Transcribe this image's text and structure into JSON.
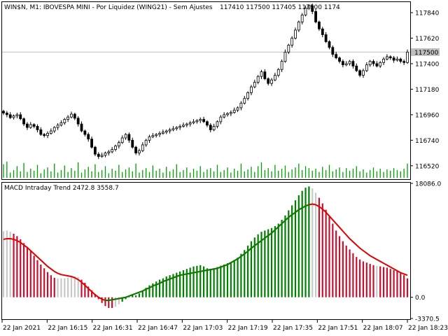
{
  "window": {
    "symbol_header": "WIN$N, M1:  IBOVESPA MINI - Por Liquidez (WING21) - Sem Ajustes",
    "ohlc_text": "117410 117500 117405 117500  1174"
  },
  "current_price_label": "117500",
  "chart_data": [
    {
      "type": "candlestick",
      "title": "WIN$N, M1:  IBOVESPA MINI - Por Liquidez (WING21) - Sem Ajustes",
      "ylim": [
        116410,
        117925
      ],
      "y_ticks": [
        "117840",
        "117620",
        "117400",
        "117180",
        "116960",
        "116740",
        "116520"
      ],
      "y_tick_values": [
        117840,
        117620,
        117400,
        117180,
        116960,
        116740,
        116520
      ],
      "current_price": 117500,
      "close": [
        116975,
        116960,
        116935,
        116950,
        116960,
        116925,
        116880,
        116850,
        116875,
        116860,
        116830,
        116790,
        116780,
        116800,
        116820,
        116850,
        116870,
        116890,
        116920,
        116940,
        116965,
        116930,
        116880,
        116820,
        116790,
        116750,
        116680,
        116620,
        116600,
        116610,
        116630,
        116640,
        116660,
        116690,
        116720,
        116760,
        116790,
        116740,
        116680,
        116630,
        116650,
        116700,
        116740,
        116770,
        116780,
        116790,
        116800,
        116810,
        116820,
        116830,
        116840,
        116850,
        116860,
        116870,
        116880,
        116890,
        116900,
        116910,
        116920,
        116900,
        116870,
        116830,
        116860,
        116900,
        116940,
        116960,
        116970,
        116980,
        117000,
        117020,
        117060,
        117100,
        117150,
        117200,
        117240,
        117290,
        117330,
        117270,
        117230,
        117260,
        117300,
        117350,
        117420,
        117500,
        117560,
        117620,
        117690,
        117760,
        117820,
        117880,
        117900,
        117850,
        117760,
        117700,
        117650,
        117590,
        117540,
        117480,
        117450,
        117420,
        117390,
        117400,
        117420,
        117380,
        117340,
        117300,
        117340,
        117390,
        117420,
        117400,
        117380,
        117410,
        117440,
        117460,
        117450,
        117430,
        117440,
        117420,
        117410,
        117500
      ],
      "volume": [
        21,
        25,
        8,
        12,
        18,
        10,
        23,
        9,
        14,
        11,
        20,
        7,
        13,
        16,
        10,
        22,
        8,
        12,
        19,
        9,
        15,
        11,
        24,
        8,
        13,
        17,
        10,
        21,
        9,
        12,
        18,
        7,
        14,
        11,
        20,
        9,
        13,
        16,
        10,
        22,
        8,
        12,
        15,
        9,
        19,
        11,
        14,
        8,
        17,
        10,
        13,
        21,
        9,
        12,
        16,
        8,
        14,
        11,
        18,
        9,
        13,
        15,
        10,
        20,
        9,
        12,
        16,
        8,
        14,
        11,
        22,
        10,
        13,
        17,
        9,
        18,
        24,
        12,
        15,
        10,
        20,
        11,
        14,
        19,
        9,
        13,
        16,
        22,
        12,
        18,
        15,
        11,
        14,
        9,
        17,
        12,
        20,
        10,
        13,
        16,
        9,
        15,
        11,
        14,
        18,
        10,
        13,
        8,
        12,
        16,
        10,
        14,
        9,
        13,
        11,
        15,
        12,
        10,
        14,
        22
      ]
    },
    {
      "type": "bar",
      "title": "MACD Intraday Trend  2472.8 3558.7",
      "indicator_name": "MACD Intraday Trend",
      "indicator_values": "2472.8 3558.7",
      "ylim": [
        -3370.5,
        18086.0
      ],
      "y_ticks": [
        "18086.0",
        "0.0",
        "-3370.5"
      ],
      "y_tick_values": [
        18086.0,
        0.0,
        -3370.5
      ],
      "x_ticks": [
        "22 Jan 2021",
        "22 Jan 16:15",
        "22 Jan 16:31",
        "22 Jan 16:47",
        "22 Jan 17:03",
        "22 Jan 17:19",
        "22 Jan 17:35",
        "22 Jan 17:51",
        "22 Jan 18:07",
        "22 Jan 18:23"
      ],
      "colors": {
        "up": "#008000",
        "down": "#c8102e",
        "neutral": "#c8c8c8",
        "signal": "#e00000"
      },
      "histogram": [
        10500,
        10600,
        10400,
        10100,
        9700,
        9200,
        8600,
        8000,
        7300,
        6600,
        5900,
        5200,
        4600,
        4000,
        3500,
        3100,
        3000,
        3000,
        3000,
        3100,
        3200,
        3300,
        3200,
        2800,
        2300,
        1700,
        1100,
        500,
        -300,
        -900,
        -1400,
        -1700,
        -1700,
        -1500,
        -1100,
        -700,
        -300,
        100,
        300,
        300,
        600,
        1000,
        1500,
        1900,
        2200,
        2500,
        2800,
        3000,
        3300,
        3500,
        3700,
        3900,
        4100,
        4300,
        4500,
        4700,
        4900,
        5000,
        5100,
        4900,
        4600,
        4500,
        4600,
        4800,
        5000,
        5200,
        5400,
        5600,
        5900,
        6300,
        6900,
        7500,
        8200,
        8900,
        9500,
        10000,
        10400,
        10600,
        10800,
        11000,
        11300,
        11700,
        12300,
        13000,
        13800,
        14600,
        15400,
        16200,
        16900,
        17400,
        17600,
        17300,
        16600,
        15800,
        14900,
        13900,
        12800,
        11700,
        10600,
        9700,
        8900,
        8200,
        7600,
        7000,
        6400,
        6000,
        5700,
        5500,
        5300,
        5100,
        5000,
        4900,
        4800,
        4700,
        4500,
        4300,
        4100,
        3800,
        3500,
        3000
      ],
      "bar_colors": [
        "neutral",
        "neutral",
        "neutral",
        "down",
        "down",
        "down",
        "down",
        "down",
        "down",
        "down",
        "down",
        "down",
        "down",
        "down",
        "down",
        "down",
        "neutral",
        "neutral",
        "neutral",
        "neutral",
        "neutral",
        "neutral",
        "neutral",
        "down",
        "down",
        "down",
        "down",
        "down",
        "down",
        "down",
        "down",
        "down",
        "down",
        "neutral",
        "neutral",
        "up",
        "up",
        "up",
        "up",
        "up",
        "up",
        "up",
        "up",
        "up",
        "up",
        "up",
        "up",
        "up",
        "up",
        "up",
        "up",
        "up",
        "up",
        "up",
        "up",
        "up",
        "up",
        "up",
        "up",
        "up",
        "up",
        "up",
        "up",
        "up",
        "up",
        "up",
        "up",
        "up",
        "up",
        "up",
        "up",
        "up",
        "up",
        "up",
        "up",
        "up",
        "up",
        "up",
        "up",
        "up",
        "up",
        "up",
        "up",
        "up",
        "up",
        "up",
        "up",
        "up",
        "up",
        "up",
        "up",
        "neutral",
        "neutral",
        "down",
        "down",
        "down",
        "down",
        "down",
        "down",
        "down",
        "down",
        "down",
        "down",
        "down",
        "down",
        "down",
        "down",
        "down",
        "down",
        "down",
        "neutral",
        "down",
        "down",
        "down",
        "down",
        "down",
        "down",
        "down",
        "down",
        "down"
      ],
      "signal_line": [
        9200,
        9300,
        9300,
        9200,
        9000,
        8700,
        8300,
        7900,
        7400,
        6900,
        6400,
        5900,
        5400,
        4900,
        4500,
        4100,
        3800,
        3600,
        3500,
        3400,
        3300,
        3100,
        2800,
        2400,
        1900,
        1400,
        900,
        400,
        0,
        -300,
        -500,
        -500,
        -400,
        -300,
        -200,
        -100,
        0,
        200,
        400,
        600,
        800,
        1000,
        1300,
        1500,
        1800,
        2000,
        2200,
        2500,
        2700,
        2900,
        3100,
        3300,
        3500,
        3600,
        3700,
        3800,
        3900,
        4000,
        4100,
        4200,
        4300,
        4400,
        4500,
        4600,
        4800,
        5000,
        5200,
        5500,
        5800,
        6100,
        6500,
        6900,
        7300,
        7800,
        8200,
        8600,
        9000,
        9400,
        9800,
        10200,
        10700,
        11200,
        11700,
        12200,
        12700,
        13100,
        13500,
        13900,
        14200,
        14500,
        14700,
        14800,
        14700,
        14400,
        14000,
        13500,
        12900,
        12300,
        11700,
        11100,
        10500,
        9900,
        9300,
        8800,
        8300,
        7800,
        7400,
        7000,
        6600,
        6300,
        6000,
        5700,
        5400,
        5100,
        4800,
        4500,
        4200,
        3900,
        3700,
        3500
      ]
    }
  ]
}
